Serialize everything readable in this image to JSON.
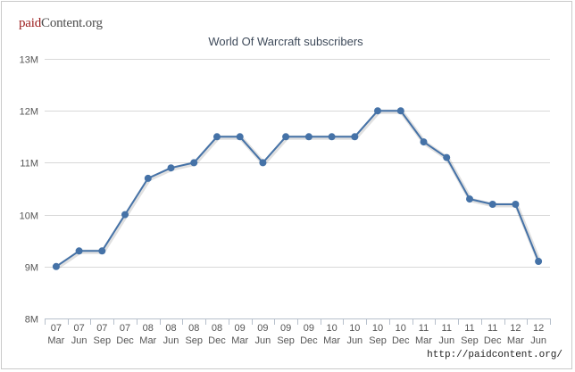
{
  "logo": {
    "part1": "paid",
    "part2": "Content.org"
  },
  "credit": "http://paidcontent.org/",
  "chart_data": {
    "type": "line",
    "title": "World Of Warcraft subscribers",
    "xlabel": "",
    "ylabel": "",
    "ylim": [
      8,
      13
    ],
    "yticks": [
      "8M",
      "9M",
      "10M",
      "11M",
      "12M",
      "13M"
    ],
    "grid": true,
    "legend": false,
    "categories": [
      [
        "07",
        "Mar"
      ],
      [
        "07",
        "Jun"
      ],
      [
        "07",
        "Sep"
      ],
      [
        "07",
        "Dec"
      ],
      [
        "08",
        "Mar"
      ],
      [
        "08",
        "Jun"
      ],
      [
        "08",
        "Sep"
      ],
      [
        "08",
        "Dec"
      ],
      [
        "09",
        "Mar"
      ],
      [
        "09",
        "Jun"
      ],
      [
        "09",
        "Sep"
      ],
      [
        "09",
        "Dec"
      ],
      [
        "10",
        "Mar"
      ],
      [
        "10",
        "Jun"
      ],
      [
        "10",
        "Sep"
      ],
      [
        "10",
        "Dec"
      ],
      [
        "11",
        "Mar"
      ],
      [
        "11",
        "Jun"
      ],
      [
        "11",
        "Sep"
      ],
      [
        "11",
        "Dec"
      ],
      [
        "12",
        "Mar"
      ],
      [
        "12",
        "Jun"
      ]
    ],
    "series": [
      {
        "color": "#4572a7",
        "values": [
          9.0,
          9.3,
          9.3,
          10.0,
          10.7,
          10.9,
          11.0,
          11.5,
          11.5,
          11.0,
          11.5,
          11.5,
          11.5,
          11.5,
          12.0,
          12.0,
          11.4,
          11.1,
          10.3,
          10.2,
          10.2,
          9.1
        ]
      }
    ]
  }
}
